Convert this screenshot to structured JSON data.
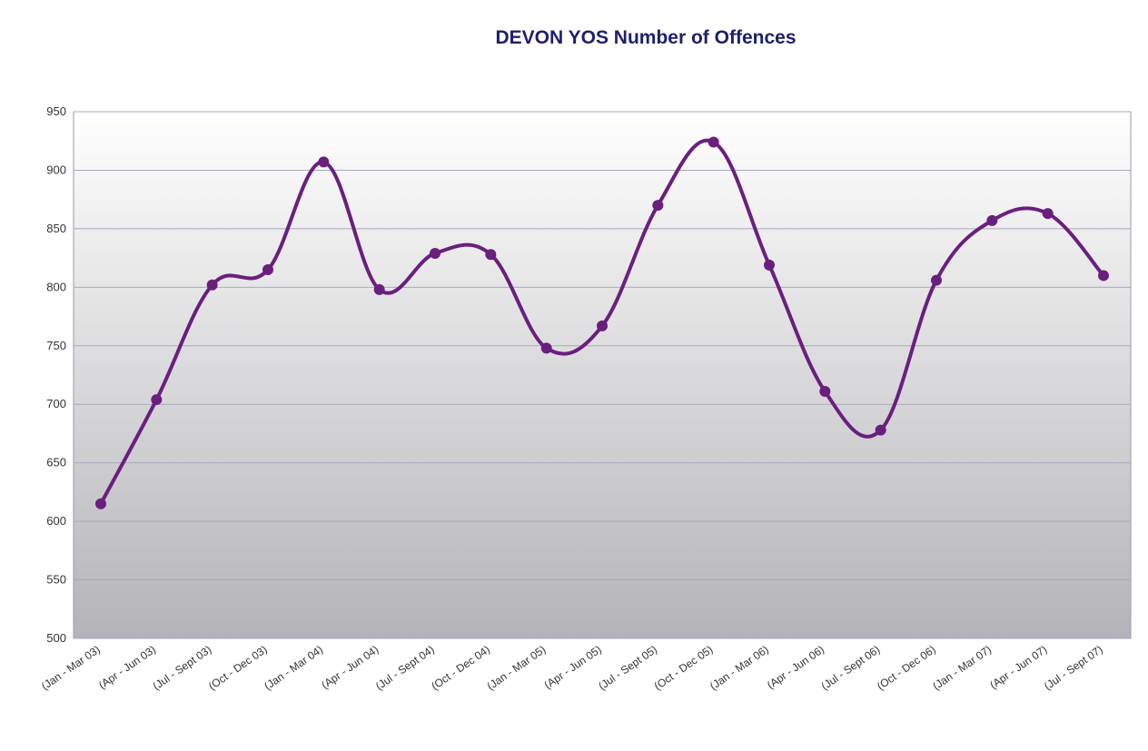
{
  "chart_data": {
    "type": "line",
    "title": "DEVON YOS  Number of Offences",
    "xlabel": "",
    "ylabel": "",
    "ylim": [
      500,
      950
    ],
    "yticks": [
      500,
      550,
      600,
      650,
      700,
      750,
      800,
      850,
      900,
      950
    ],
    "categories": [
      "(Jan - Mar 03)",
      "(Apr - Jun 03)",
      "(Jul - Sept 03)",
      "(Oct - Dec 03)",
      "(Jan - Mar 04)",
      "(Apr - Jun 04)",
      "(Jul - Sept 04)",
      "(Oct - Dec 04)",
      "(Jan - Mar 05)",
      "(Apr - Jun 05)",
      "(Jul - Sept 05)",
      "(Oct - Dec 05)",
      "(Jan - Mar 06)",
      "(Apr - Jun 06)",
      "(Jul - Sept 06)",
      "(Oct - Dec 06)",
      "(Jan - Mar 07)",
      "(Apr - Jun 07)",
      "(Jul - Sept 07)"
    ],
    "series": [
      {
        "values": [
          615,
          704,
          802,
          815,
          907,
          798,
          829,
          828,
          748,
          767,
          870,
          924,
          819,
          711,
          678,
          806,
          857,
          863,
          810
        ]
      }
    ],
    "grid": true,
    "legend": "none",
    "line_color": "#6a1f7e",
    "plot_background": [
      "#ffffff",
      "#b4b4b8"
    ]
  }
}
